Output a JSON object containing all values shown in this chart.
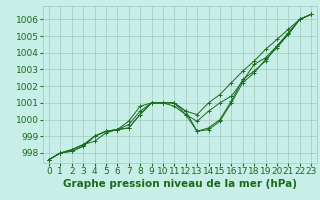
{
  "background_color": "#c8eee8",
  "grid_color": "#a0c8c0",
  "line_color": "#1a6b1a",
  "xlabel": "Graphe pression niveau de la mer (hPa)",
  "xlabel_fontsize": 7.5,
  "tick_fontsize": 6.5,
  "ylim": [
    997.4,
    1006.8
  ],
  "xlim": [
    -0.5,
    23.5
  ],
  "yticks": [
    998,
    999,
    1000,
    1001,
    1002,
    1003,
    1004,
    1005,
    1006
  ],
  "xticks": [
    0,
    1,
    2,
    3,
    4,
    5,
    6,
    7,
    8,
    9,
    10,
    11,
    12,
    13,
    14,
    15,
    16,
    17,
    18,
    19,
    20,
    21,
    22,
    23
  ],
  "series": {
    "line1": [
      997.6,
      998.0,
      998.1,
      998.4,
      999.0,
      999.3,
      999.4,
      999.5,
      1000.3,
      1001.0,
      1001.0,
      1001.0,
      1000.3,
      999.9,
      1000.5,
      1001.0,
      1001.4,
      1002.3,
      1003.3,
      1003.7,
      1004.4,
      1005.1,
      1006.0,
      1006.3
    ],
    "line2": [
      997.6,
      998.0,
      998.1,
      998.4,
      999.0,
      999.3,
      999.4,
      999.5,
      1000.3,
      1001.0,
      1001.0,
      1001.0,
      1000.5,
      1000.3,
      1001.0,
      1001.5,
      1002.2,
      1002.9,
      1003.5,
      1004.2,
      1004.8,
      1005.4,
      1006.0,
      1006.3
    ],
    "line3": [
      997.6,
      998.0,
      998.2,
      998.5,
      998.7,
      999.2,
      999.4,
      999.9,
      1000.8,
      1001.0,
      1001.0,
      1000.8,
      1000.3,
      999.3,
      999.4,
      999.9,
      1001.0,
      1002.2,
      1002.8,
      1003.6,
      1004.3,
      1005.1,
      1006.0,
      1006.3
    ],
    "line4": [
      997.6,
      998.0,
      998.2,
      998.5,
      999.0,
      999.3,
      999.4,
      999.7,
      1000.5,
      1001.0,
      1001.0,
      1001.0,
      1000.5,
      999.3,
      999.5,
      1000.0,
      1001.1,
      1002.4,
      1002.9,
      1003.5,
      1004.4,
      1005.2,
      1006.0,
      1006.3
    ]
  }
}
